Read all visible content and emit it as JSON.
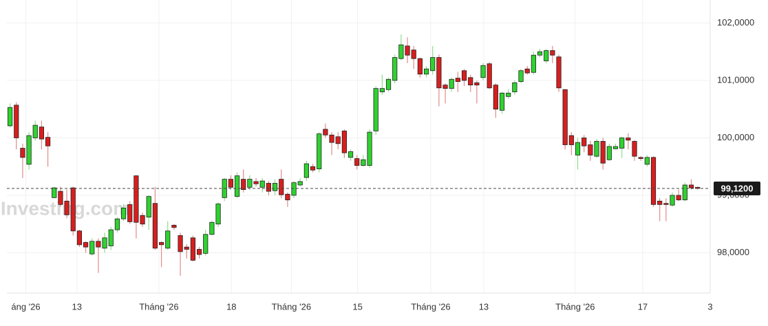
{
  "chart_data": {
    "type": "candlestick",
    "watermark": "Investing.com",
    "up_color": "#2fd22f",
    "down_color": "#d81e1e",
    "up_wick": "#8fdc8f",
    "down_wick": "#e08a8a",
    "open": [
      100.21,
      100.57,
      99.82,
      99.54,
      100.0,
      100.19,
      100.01,
      98.96,
      99.07,
      98.9,
      99.13,
      98.38,
      98.18,
      97.98,
      98.2,
      98.08,
      98.12,
      98.4,
      98.59,
      98.84,
      99.34,
      98.65,
      98.62,
      98.86,
      98.18,
      98.08,
      98.48,
      98.3,
      98.1,
      98.26,
      98.06,
      97.99,
      98.32,
      98.5,
      98.96,
      99.28,
      98.98,
      99.28,
      99.14,
      99.24,
      99.14,
      99.21,
      99.08,
      99.28,
      99.02,
      99.0,
      99.18,
      99.31,
      99.5,
      99.46,
      100.15,
      100.05,
      100.02,
      100.12,
      99.66,
      99.64,
      99.52,
      99.52,
      100.12,
      100.8,
      100.84,
      101.0,
      101.38,
      101.6,
      101.53,
      101.38,
      101.11,
      101.17,
      101.4,
      100.92,
      100.86,
      101.04,
      101.17,
      101.05,
      100.96,
      101.05,
      101.29,
      100.92,
      100.48,
      100.72,
      100.8,
      100.98,
      101.2,
      101.14,
      101.44,
      101.34,
      101.52,
      101.41,
      100.84,
      100.04,
      99.7,
      100.0,
      99.88,
      99.68,
      99.94,
      99.62,
      99.81,
      99.82,
      100.0,
      99.94,
      99.66,
      99.54,
      99.66,
      98.9,
      98.86,
      98.83,
      99.0,
      98.92,
      99.18,
      99.14
    ],
    "high": [
      100.6,
      100.62,
      99.9,
      100.1,
      100.3,
      100.3,
      100.1,
      99.15,
      99.15,
      99.1,
      99.15,
      98.4,
      98.2,
      98.25,
      98.25,
      98.35,
      98.45,
      98.62,
      98.85,
      98.9,
      99.35,
      98.7,
      99.0,
      99.15,
      98.2,
      98.55,
      98.5,
      98.35,
      98.15,
      98.3,
      98.1,
      98.4,
      98.56,
      98.88,
      99.3,
      99.35,
      99.4,
      99.45,
      99.35,
      99.3,
      99.3,
      99.25,
      99.28,
      99.45,
      99.05,
      99.25,
      99.3,
      99.6,
      99.55,
      100.1,
      100.25,
      100.1,
      100.1,
      100.15,
      99.8,
      99.7,
      99.7,
      100.15,
      100.9,
      101.1,
      101.05,
      101.45,
      101.8,
      101.75,
      101.6,
      101.4,
      101.25,
      101.6,
      101.45,
      100.95,
      101.05,
      101.15,
      101.2,
      101.1,
      101.0,
      101.3,
      101.32,
      100.95,
      100.8,
      100.85,
      101.0,
      101.2,
      101.25,
      101.5,
      101.55,
      101.55,
      101.6,
      101.45,
      100.85,
      100.1,
      100.0,
      100.05,
      99.95,
      99.98,
      100.0,
      99.9,
      99.9,
      100.02,
      100.08,
      99.96,
      99.68,
      99.7,
      99.68,
      98.95,
      98.95,
      99.05,
      99.1,
      99.22,
      99.28,
      99.15
    ],
    "low": [
      100.18,
      99.8,
      99.3,
      99.45,
      99.95,
      99.8,
      99.5,
      98.95,
      98.8,
      98.6,
      98.3,
      98.1,
      98.0,
      97.95,
      97.65,
      98.0,
      98.05,
      98.35,
      98.55,
      98.5,
      98.25,
      98.45,
      98.4,
      98.05,
      97.75,
      98.05,
      98.4,
      97.6,
      97.9,
      97.85,
      97.9,
      97.95,
      98.3,
      98.45,
      98.9,
      99.1,
      98.95,
      99.05,
      99.1,
      99.15,
      99.05,
      99.0,
      99.0,
      98.95,
      98.8,
      98.95,
      99.15,
      99.25,
      99.4,
      99.4,
      100.0,
      99.7,
      99.8,
      99.65,
      99.6,
      99.45,
      99.5,
      99.48,
      100.05,
      100.75,
      100.8,
      100.95,
      101.35,
      101.3,
      101.2,
      101.05,
      101.05,
      101.1,
      100.55,
      100.6,
      100.8,
      100.8,
      100.9,
      100.8,
      100.6,
      101.0,
      100.85,
      100.35,
      100.42,
      100.68,
      100.75,
      100.95,
      101.1,
      101.1,
      101.4,
      101.3,
      101.3,
      100.8,
      99.8,
      99.7,
      99.45,
      99.75,
      99.6,
      99.65,
      99.45,
      99.6,
      99.8,
      99.65,
      99.8,
      99.6,
      99.6,
      99.5,
      98.8,
      98.55,
      98.55,
      98.8,
      98.9,
      98.9,
      99.1,
      99.1
    ],
    "close": [
      100.53,
      100.0,
      99.66,
      100.04,
      100.22,
      99.98,
      99.86,
      99.13,
      98.84,
      98.66,
      98.38,
      98.14,
      98.1,
      98.2,
      98.1,
      98.26,
      98.4,
      98.59,
      98.78,
      98.54,
      98.53,
      98.5,
      98.98,
      98.08,
      98.14,
      98.38,
      98.44,
      98.02,
      98.06,
      97.87,
      97.97,
      98.32,
      98.53,
      98.85,
      99.28,
      99.14,
      99.34,
      99.1,
      99.28,
      99.2,
      99.25,
      99.07,
      99.21,
      99.01,
      98.92,
      99.22,
      99.24,
      99.55,
      99.44,
      100.07,
      100.05,
      99.92,
      99.9,
      99.74,
      99.76,
      99.52,
      99.62,
      100.1,
      100.86,
      100.86,
      101.02,
      101.4,
      101.62,
      101.44,
      101.38,
      101.11,
      101.2,
      101.4,
      100.87,
      100.86,
      101.02,
      100.98,
      101.0,
      100.92,
      100.92,
      101.26,
      100.87,
      100.5,
      100.78,
      100.78,
      100.96,
      101.17,
      101.13,
      101.44,
      101.5,
      101.52,
      101.44,
      100.87,
      99.88,
      99.88,
      99.92,
      99.86,
      99.7,
      99.94,
      99.56,
      99.85,
      99.85,
      100.0,
      99.96,
      99.68,
      99.64,
      99.66,
      98.84,
      98.84,
      98.84,
      99.0,
      98.92,
      99.18,
      99.13,
      99.12
    ],
    "xlim": [
      -0.5,
      111
    ],
    "xticks": [
      {
        "value": 2.5,
        "label": "áng '26"
      },
      {
        "value": 10.6,
        "label": "13"
      },
      {
        "value": 23.6,
        "label": "Tháng '26"
      },
      {
        "value": 35.1,
        "label": "18"
      },
      {
        "value": 44.6,
        "label": "Tháng '26"
      },
      {
        "value": 55.1,
        "label": "15"
      },
      {
        "value": 66.7,
        "label": "Tháng '26"
      },
      {
        "value": 75.1,
        "label": "13"
      },
      {
        "value": 89.6,
        "label": "Tháng '26"
      },
      {
        "value": 100.3,
        "label": "17"
      },
      {
        "value": 111,
        "label": "3"
      }
    ],
    "ylim": [
      97.3,
      102.4
    ],
    "yticks": [
      {
        "value": 98,
        "label": "98,0000"
      },
      {
        "value": 99,
        "label": "99,0000"
      },
      {
        "value": 100,
        "label": "100,0000"
      },
      {
        "value": 101,
        "label": "101,0000"
      },
      {
        "value": 102,
        "label": "102,0000"
      }
    ],
    "last_price": {
      "value": 99.12,
      "label": "99,1200"
    },
    "grid": true
  }
}
